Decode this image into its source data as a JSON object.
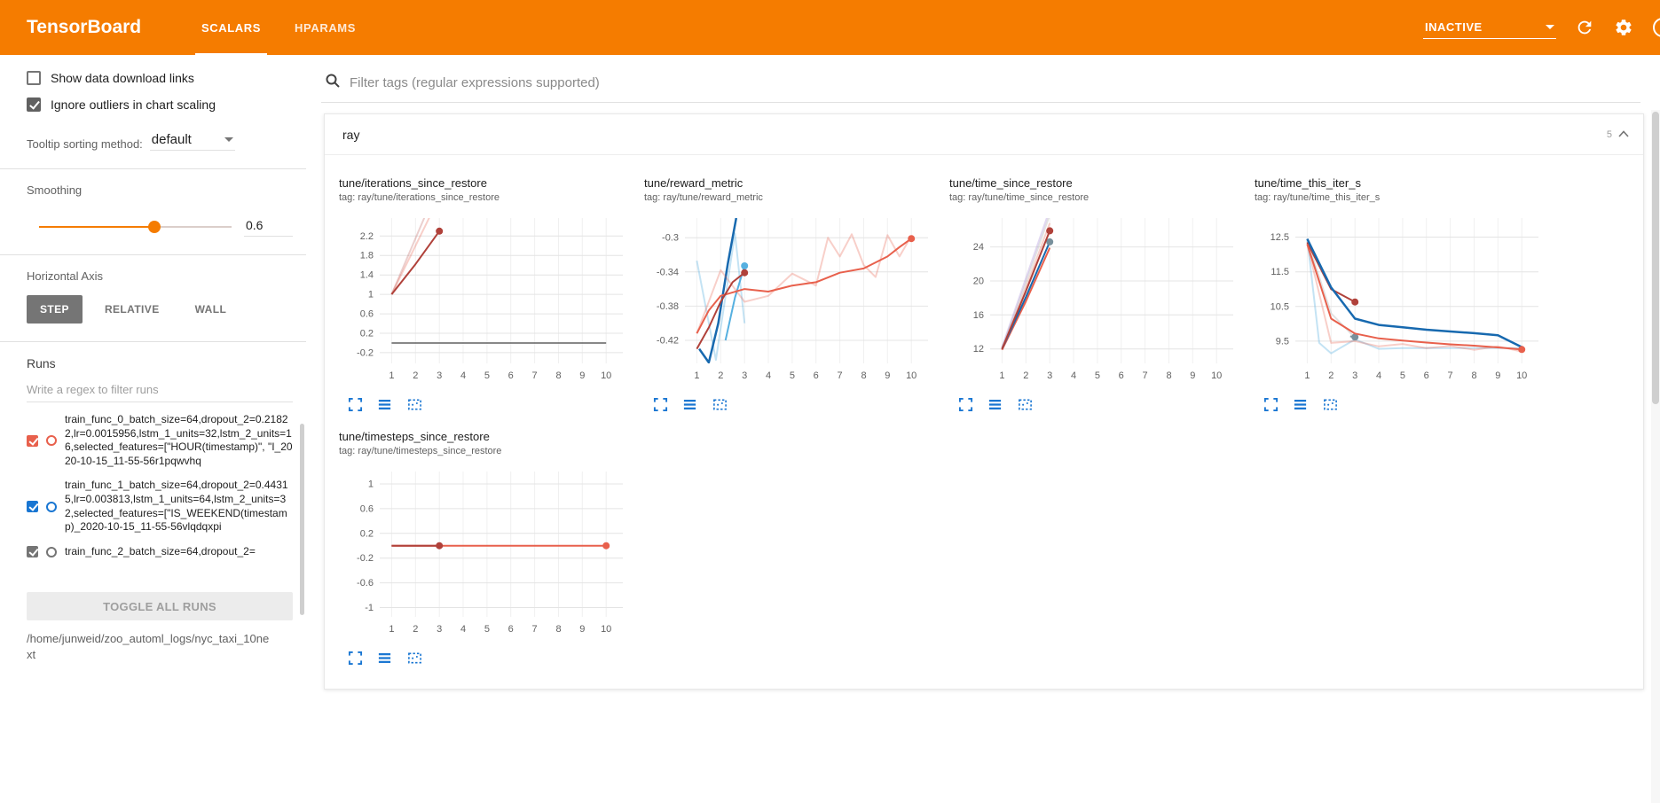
{
  "header": {
    "title": "TensorBoard",
    "tabs": [
      {
        "label": "SCALARS",
        "active": true
      },
      {
        "label": "HPARAMS",
        "active": false
      }
    ],
    "status": "INACTIVE",
    "accent_color": "#f57c00"
  },
  "sidebar": {
    "checkboxes": [
      {
        "label": "Show data download links",
        "checked": false
      },
      {
        "label": "Ignore outliers in chart scaling",
        "checked": true
      }
    ],
    "tooltip_sort": {
      "label": "Tooltip sorting method:",
      "value": "default"
    },
    "smoothing": {
      "label": "Smoothing",
      "value": "0.6"
    },
    "axis": {
      "label": "Horizontal Axis",
      "options": [
        "STEP",
        "RELATIVE",
        "WALL"
      ],
      "selected": "STEP"
    },
    "runs": {
      "label": "Runs",
      "filter_placeholder": "Write a regex to filter runs",
      "items": [
        {
          "name": "train_func_0_batch_size=64,dropout_2=0.21822,lr=0.0015956,lstm_1_units=32,lstm_2_units=16,selected_features=[\"HOUR(timestamp)\", \"I_2020-10-15_11-55-56r1pqwvhq",
          "color": "#e8604c",
          "checked": true
        },
        {
          "name": "train_func_1_batch_size=64,dropout_2=0.44315,lr=0.003813,lstm_1_units=64,lstm_2_units=32,selected_features=[\"IS_WEEKEND(timestamp)_2020-10-15_11-55-56vlqdqxpi",
          "color": "#1976d2",
          "checked": true
        },
        {
          "name": "train_func_2_batch_size=64,dropout_2=",
          "color": "#757575",
          "checked": true
        }
      ],
      "toggle_label": "TOGGLE ALL RUNS",
      "log_path": "/home/junweid/zoo_automl_logs/nyc_taxi_10next"
    }
  },
  "main": {
    "filter_placeholder": "Filter tags (regular expressions supported)",
    "section": {
      "name": "ray",
      "count": "5"
    }
  },
  "chart_data": [
    {
      "type": "line",
      "title": "tune/iterations_since_restore",
      "tag": "tag: ray/tune/iterations_since_restore",
      "xticks": [
        1,
        2,
        3,
        4,
        5,
        6,
        7,
        8,
        9,
        10
      ],
      "xlim": [
        0.5,
        10.7
      ],
      "yticks": [
        -0.2,
        0.2,
        0.6,
        1,
        1.4,
        1.8,
        2.2
      ],
      "ylim": [
        -0.42,
        2.57
      ],
      "series": [
        {
          "name": "run_red_raw",
          "color": "#e8604c",
          "opacity": 0.3,
          "width": 2,
          "points": [
            [
              1,
              1
            ],
            [
              2,
              2
            ],
            [
              3,
              3
            ]
          ]
        },
        {
          "name": "run_darkred_raw",
          "color": "#b0413a",
          "opacity": 0.25,
          "width": 2,
          "points": [
            [
              1,
              1
            ],
            [
              2,
              2.15
            ],
            [
              3,
              3.3
            ]
          ]
        },
        {
          "name": "run_darkred_smoothed",
          "color": "#b0413a",
          "opacity": 1,
          "width": 2,
          "points": [
            [
              1,
              1
            ],
            [
              2,
              1.62
            ],
            [
              3,
              2.3
            ]
          ],
          "dots": [
            [
              3,
              2.3
            ]
          ]
        },
        {
          "name": "run_gray",
          "color": "#616161",
          "opacity": 1,
          "width": 1.5,
          "points": [
            [
              1,
              0
            ],
            [
              10,
              0
            ]
          ]
        }
      ]
    },
    {
      "type": "line",
      "title": "tune/reward_metric",
      "tag": "tag: ray/tune/reward_metric",
      "xticks": [
        1,
        2,
        3,
        4,
        5,
        6,
        7,
        8,
        9,
        10
      ],
      "xlim": [
        0.5,
        10.7
      ],
      "yticks": [
        -0.42,
        -0.38,
        -0.34,
        -0.3
      ],
      "ylim": [
        -0.447,
        -0.277
      ],
      "series": [
        {
          "name": "lightblue_raw",
          "color": "#56b0e0",
          "opacity": 0.35,
          "width": 2,
          "points": [
            [
              1,
              -0.327
            ],
            [
              1.8,
              -0.443
            ],
            [
              2.6,
              -0.295
            ],
            [
              3,
              -0.4
            ]
          ]
        },
        {
          "name": "lightblue_smoothed",
          "color": "#56b0e0",
          "opacity": 1,
          "width": 2,
          "points": [
            [
              2.2,
              -0.42
            ],
            [
              2.6,
              -0.37
            ],
            [
              3,
              -0.333
            ]
          ],
          "dots": [
            [
              3,
              -0.333
            ]
          ]
        },
        {
          "name": "blue_smoothed",
          "color": "#1769af",
          "opacity": 1,
          "width": 2.5,
          "points": [
            [
              1.1,
              -0.43
            ],
            [
              1.5,
              -0.446
            ],
            [
              1.9,
              -0.4
            ],
            [
              2.3,
              -0.33
            ],
            [
              2.65,
              -0.277
            ]
          ]
        },
        {
          "name": "orange_raw",
          "color": "#e8604c",
          "opacity": 0.3,
          "width": 2,
          "points": [
            [
              1,
              -0.412
            ],
            [
              2,
              -0.338
            ],
            [
              3,
              -0.375
            ],
            [
              4,
              -0.368
            ],
            [
              5,
              -0.342
            ],
            [
              6,
              -0.356
            ],
            [
              6.5,
              -0.3
            ],
            [
              7,
              -0.322
            ],
            [
              7.5,
              -0.296
            ],
            [
              8,
              -0.332
            ],
            [
              8.5,
              -0.346
            ],
            [
              9,
              -0.297
            ],
            [
              9.5,
              -0.322
            ],
            [
              10,
              -0.298
            ]
          ]
        },
        {
          "name": "orange_smoothed",
          "color": "#e8604c",
          "opacity": 1,
          "width": 2,
          "points": [
            [
              1,
              -0.412
            ],
            [
              1.5,
              -0.385
            ],
            [
              2,
              -0.368
            ],
            [
              3,
              -0.36
            ],
            [
              4,
              -0.363
            ],
            [
              5,
              -0.356
            ],
            [
              6,
              -0.352
            ],
            [
              7,
              -0.341
            ],
            [
              8,
              -0.336
            ],
            [
              9,
              -0.322
            ],
            [
              9.5,
              -0.311
            ],
            [
              10,
              -0.301
            ]
          ],
          "dots": [
            [
              10,
              -0.301
            ]
          ]
        },
        {
          "name": "darkred_smoothed",
          "color": "#b0413a",
          "opacity": 1,
          "width": 2,
          "points": [
            [
              1,
              -0.43
            ],
            [
              1.5,
              -0.405
            ],
            [
              2,
              -0.375
            ],
            [
              2.5,
              -0.352
            ],
            [
              3,
              -0.341
            ]
          ],
          "dots": [
            [
              3,
              -0.341
            ]
          ]
        }
      ]
    },
    {
      "type": "line",
      "title": "tune/time_since_restore",
      "tag": "tag: ray/tune/time_since_restore",
      "xticks": [
        1,
        2,
        3,
        4,
        5,
        6,
        7,
        8,
        9,
        10
      ],
      "xlim": [
        0.5,
        10.7
      ],
      "yticks": [
        12,
        16,
        20,
        24
      ],
      "ylim": [
        10.3,
        27.4
      ],
      "series": [
        {
          "name": "gray_raw",
          "color": "#9e9e9e",
          "opacity": 0.3,
          "width": 2,
          "points": [
            [
              1,
              12.1
            ],
            [
              2,
              19.8
            ],
            [
              3,
              27.8
            ]
          ]
        },
        {
          "name": "lavender_raw",
          "color": "#b39ddb",
          "opacity": 0.4,
          "width": 2,
          "points": [
            [
              1,
              12.2
            ],
            [
              2,
              20.3
            ],
            [
              3,
              28.4
            ]
          ]
        },
        {
          "name": "orange_raw",
          "color": "#e8604c",
          "opacity": 0.3,
          "width": 2,
          "points": [
            [
              1,
              11.9
            ],
            [
              2,
              19.2
            ],
            [
              3,
              26.8
            ]
          ]
        },
        {
          "name": "orange_smoothed",
          "color": "#e8604c",
          "opacity": 1,
          "width": 2,
          "points": [
            [
              1,
              11.9
            ],
            [
              2,
              17.6
            ],
            [
              3,
              23.9
            ]
          ]
        },
        {
          "name": "blue_smoothed",
          "color": "#1769af",
          "opacity": 1,
          "width": 2,
          "points": [
            [
              1,
              12
            ],
            [
              2,
              18.1
            ],
            [
              3,
              24.6
            ]
          ],
          "dots": [
            [
              3,
              24.6
            ]
          ],
          "dotColor": "#78909c"
        },
        {
          "name": "darkred_smoothed",
          "color": "#b0413a",
          "opacity": 1,
          "width": 2,
          "points": [
            [
              1,
              12
            ],
            [
              2,
              18.8
            ],
            [
              3,
              25.9
            ]
          ],
          "dots": [
            [
              3,
              25.9
            ]
          ]
        }
      ]
    },
    {
      "type": "line",
      "title": "tune/time_this_iter_s",
      "tag": "tag: ray/tune/time_this_iter_s",
      "xticks": [
        1,
        2,
        3,
        4,
        5,
        6,
        7,
        8,
        9,
        10
      ],
      "xlim": [
        0.5,
        10.7
      ],
      "yticks": [
        9.5,
        10.5,
        11.5,
        12.5
      ],
      "ylim": [
        8.86,
        13.05
      ],
      "series": [
        {
          "name": "lightblue_raw",
          "color": "#56b0e0",
          "opacity": 0.35,
          "width": 2,
          "points": [
            [
              1,
              12.45
            ],
            [
              1.5,
              9.45
            ],
            [
              2,
              9.15
            ],
            [
              3,
              9.55
            ],
            [
              4,
              9.28
            ],
            [
              5,
              9.3
            ],
            [
              6,
              9.3
            ],
            [
              7,
              9.3
            ],
            [
              8,
              9.3
            ],
            [
              9,
              9.3
            ],
            [
              10,
              9.3
            ]
          ]
        },
        {
          "name": "orange_raw",
          "color": "#e8604c",
          "opacity": 0.3,
          "width": 2,
          "points": [
            [
              1,
              12.3
            ],
            [
              2,
              9.45
            ],
            [
              3,
              9.5
            ],
            [
              4,
              9.35
            ],
            [
              5,
              9.42
            ],
            [
              6,
              9.3
            ],
            [
              7,
              9.36
            ],
            [
              8,
              9.25
            ],
            [
              9,
              9.35
            ],
            [
              10,
              9.2
            ]
          ]
        },
        {
          "name": "gray_raw",
          "color": "#9e9e9e",
          "opacity": 0.3,
          "width": 2,
          "points": [
            [
              1,
              12.4
            ],
            [
              2,
              10.3
            ],
            [
              3,
              9.6
            ]
          ]
        },
        {
          "name": "darkred_smoothed",
          "color": "#b0413a",
          "opacity": 1,
          "width": 2,
          "points": [
            [
              1,
              12.35
            ],
            [
              2,
              11.0
            ],
            [
              3,
              10.63
            ]
          ],
          "dots": [
            [
              3,
              10.63
            ]
          ]
        },
        {
          "name": "blue_smoothed",
          "color": "#1769af",
          "opacity": 1,
          "width": 2.5,
          "points": [
            [
              1,
              12.45
            ],
            [
              2,
              11.05
            ],
            [
              3,
              10.15
            ],
            [
              4,
              9.97
            ],
            [
              5,
              9.9
            ],
            [
              6,
              9.83
            ],
            [
              7,
              9.78
            ],
            [
              8,
              9.73
            ],
            [
              9,
              9.67
            ],
            [
              10,
              9.33
            ]
          ]
        },
        {
          "name": "lightblue_smoothed",
          "color": "#78909c",
          "opacity": 1,
          "width": 2,
          "points": [
            [
              2.8,
              9.64
            ],
            [
              3,
              9.62
            ]
          ],
          "dots": [
            [
              3,
              9.62
            ]
          ]
        },
        {
          "name": "orange_smoothed",
          "color": "#e8604c",
          "opacity": 1,
          "width": 2,
          "points": [
            [
              1,
              12.3
            ],
            [
              2,
              10.15
            ],
            [
              3,
              9.72
            ],
            [
              4,
              9.58
            ],
            [
              5,
              9.52
            ],
            [
              6,
              9.46
            ],
            [
              7,
              9.41
            ],
            [
              8,
              9.37
            ],
            [
              9,
              9.32
            ],
            [
              10,
              9.26
            ]
          ],
          "dots": [
            [
              10,
              9.26
            ]
          ]
        }
      ]
    },
    {
      "type": "line",
      "title": "tune/timesteps_since_restore",
      "tag": "tag: ray/tune/timesteps_since_restore",
      "xticks": [
        1,
        2,
        3,
        4,
        5,
        6,
        7,
        8,
        9,
        10
      ],
      "xlim": [
        0.5,
        10.7
      ],
      "yticks": [
        -1,
        -0.6,
        -0.2,
        0.2,
        0.6,
        1
      ],
      "ylim": [
        -1.15,
        1.2
      ],
      "series": [
        {
          "name": "gray",
          "color": "#616161",
          "opacity": 1,
          "width": 1.5,
          "points": [
            [
              1,
              0
            ],
            [
              10,
              0
            ]
          ]
        },
        {
          "name": "orange_smoothed",
          "color": "#e8604c",
          "opacity": 1,
          "width": 2,
          "points": [
            [
              1,
              0
            ],
            [
              10,
              0
            ]
          ],
          "dots": [
            [
              10,
              0
            ]
          ]
        },
        {
          "name": "darkred_smoothed",
          "color": "#b0413a",
          "opacity": 1,
          "width": 2,
          "points": [
            [
              1,
              0
            ],
            [
              3,
              0
            ]
          ],
          "dots": [
            [
              3,
              0
            ]
          ]
        }
      ]
    }
  ]
}
